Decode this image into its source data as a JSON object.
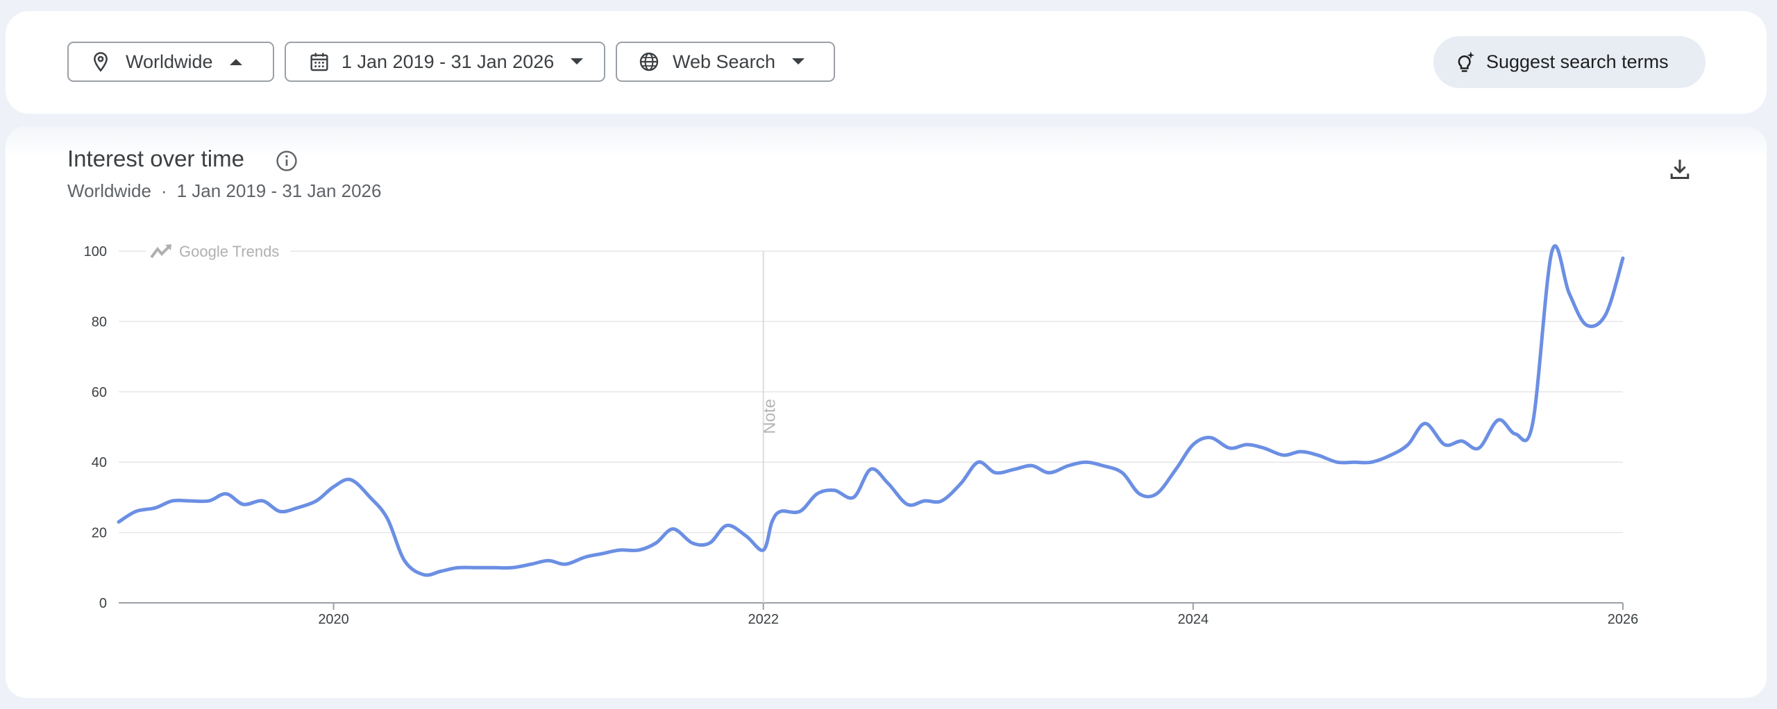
{
  "toolbar": {
    "region": "Worldwide",
    "date_range": "1 Jan 2019 - 31 Jan 2026",
    "property": "Web Search",
    "suggest_label": "Suggest search terms"
  },
  "icons": {
    "region": "location-pin-icon",
    "date_range": "calendar-icon",
    "property": "globe-icon",
    "suggest": "sparkle-bulb-icon",
    "info": "info-icon",
    "download": "download-icon"
  },
  "colors": {
    "series": "#6b8fe3",
    "grid": "#e6e6e6",
    "note_line": "#dadce0"
  },
  "panel": {
    "title": "Interest over time",
    "region": "Worldwide",
    "separator": "·",
    "date_range": "1 Jan 2019 - 31 Jan 2026",
    "watermark": "Google Trends",
    "note": "Note"
  },
  "chart_data": {
    "type": "line",
    "x_unit": "year",
    "x_range": [
      2019.0,
      2026.0
    ],
    "y_range": [
      0,
      100
    ],
    "y_ticks": [
      "0",
      "20",
      "40",
      "60",
      "80",
      "100"
    ],
    "x_ticks": [
      {
        "value": 2020,
        "label": "2020"
      },
      {
        "value": 2022,
        "label": "2022"
      },
      {
        "value": 2024,
        "label": "2024"
      },
      {
        "value": 2026,
        "label": "2026"
      }
    ],
    "grid": true,
    "annotations": [
      {
        "x": 2022.0,
        "label": "Note"
      }
    ],
    "series": [
      {
        "points": [
          [
            2019.0,
            23
          ],
          [
            2019.08,
            26
          ],
          [
            2019.17,
            27
          ],
          [
            2019.25,
            29
          ],
          [
            2019.33,
            29
          ],
          [
            2019.42,
            29
          ],
          [
            2019.5,
            31
          ],
          [
            2019.58,
            28
          ],
          [
            2019.67,
            29
          ],
          [
            2019.75,
            26
          ],
          [
            2019.83,
            27
          ],
          [
            2019.92,
            29
          ],
          [
            2020.0,
            33
          ],
          [
            2020.08,
            35
          ],
          [
            2020.17,
            30
          ],
          [
            2020.25,
            24
          ],
          [
            2020.33,
            12
          ],
          [
            2020.42,
            8
          ],
          [
            2020.5,
            9
          ],
          [
            2020.58,
            10
          ],
          [
            2020.67,
            10
          ],
          [
            2020.75,
            10
          ],
          [
            2020.83,
            10
          ],
          [
            2020.92,
            11
          ],
          [
            2021.0,
            12
          ],
          [
            2021.08,
            11
          ],
          [
            2021.17,
            13
          ],
          [
            2021.25,
            14
          ],
          [
            2021.33,
            15
          ],
          [
            2021.42,
            15
          ],
          [
            2021.5,
            17
          ],
          [
            2021.58,
            21
          ],
          [
            2021.67,
            17
          ],
          [
            2021.75,
            17
          ],
          [
            2021.83,
            22
          ],
          [
            2021.92,
            19
          ],
          [
            2022.0,
            15
          ],
          [
            2022.04,
            23
          ],
          [
            2022.08,
            26
          ],
          [
            2022.17,
            26
          ],
          [
            2022.25,
            31
          ],
          [
            2022.33,
            32
          ],
          [
            2022.42,
            30
          ],
          [
            2022.5,
            38
          ],
          [
            2022.58,
            34
          ],
          [
            2022.67,
            28
          ],
          [
            2022.75,
            29
          ],
          [
            2022.83,
            29
          ],
          [
            2022.92,
            34
          ],
          [
            2023.0,
            40
          ],
          [
            2023.08,
            37
          ],
          [
            2023.17,
            38
          ],
          [
            2023.25,
            39
          ],
          [
            2023.33,
            37
          ],
          [
            2023.42,
            39
          ],
          [
            2023.5,
            40
          ],
          [
            2023.58,
            39
          ],
          [
            2023.67,
            37
          ],
          [
            2023.75,
            31
          ],
          [
            2023.83,
            31
          ],
          [
            2023.92,
            38
          ],
          [
            2024.0,
            45
          ],
          [
            2024.08,
            47
          ],
          [
            2024.17,
            44
          ],
          [
            2024.25,
            45
          ],
          [
            2024.33,
            44
          ],
          [
            2024.42,
            42
          ],
          [
            2024.5,
            43
          ],
          [
            2024.58,
            42
          ],
          [
            2024.67,
            40
          ],
          [
            2024.75,
            40
          ],
          [
            2024.83,
            40
          ],
          [
            2024.92,
            42
          ],
          [
            2025.0,
            45
          ],
          [
            2025.08,
            51
          ],
          [
            2025.17,
            45
          ],
          [
            2025.25,
            46
          ],
          [
            2025.33,
            44
          ],
          [
            2025.42,
            52
          ],
          [
            2025.5,
            48
          ],
          [
            2025.58,
            51
          ],
          [
            2025.67,
            100
          ],
          [
            2025.75,
            88
          ],
          [
            2025.83,
            79
          ],
          [
            2025.92,
            82
          ],
          [
            2026.0,
            98
          ]
        ]
      }
    ]
  }
}
